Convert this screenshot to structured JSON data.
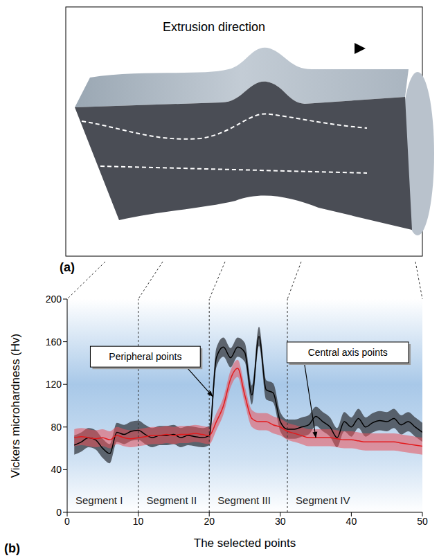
{
  "diagram": {
    "label": "(a)",
    "text": "Extrusion direction"
  },
  "chart_data": {
    "type": "line",
    "label": "(b)",
    "x_label": "The selected points",
    "y_label": "Vickers microhardness (Hv)",
    "x": [
      1,
      2,
      3,
      4,
      5,
      6,
      7,
      8,
      9,
      10,
      11,
      12,
      13,
      14,
      15,
      16,
      17,
      18,
      19,
      20,
      21,
      22,
      23,
      24,
      25,
      26,
      27,
      28,
      29,
      30,
      31,
      32,
      33,
      34,
      35,
      36,
      37,
      38,
      39,
      40,
      41,
      42,
      43,
      44,
      45,
      46,
      47,
      48,
      49,
      50
    ],
    "xlim": [
      0,
      50
    ],
    "xticks": [
      0,
      10,
      20,
      30,
      40,
      50
    ],
    "ylim": [
      0,
      200
    ],
    "yticks": [
      0,
      40,
      80,
      120,
      160,
      200
    ],
    "series": [
      {
        "name": "Peripheral points",
        "color": "#000000",
        "error": 9,
        "values": [
          63,
          66,
          70,
          68,
          60,
          55,
          75,
          73,
          76,
          77,
          73,
          70,
          72,
          72,
          73,
          70,
          72,
          71,
          70,
          72,
          145,
          155,
          145,
          155,
          150,
          110,
          165,
          115,
          112,
          85,
          78,
          78,
          80,
          82,
          90,
          85,
          80,
          70,
          85,
          80,
          88,
          80,
          84,
          86,
          85,
          88,
          82,
          85,
          80,
          75
        ]
      },
      {
        "name": "Central axis points",
        "color": "#e31a1c",
        "error": 8,
        "values": [
          70,
          71,
          70,
          69,
          70,
          68,
          72,
          70,
          69,
          70,
          71,
          72,
          72,
          73,
          72,
          73,
          73,
          74,
          73,
          72,
          85,
          100,
          125,
          135,
          110,
          88,
          85,
          85,
          82,
          80,
          76,
          74,
          72,
          70,
          70,
          70,
          70,
          69,
          68,
          68,
          67,
          66,
          66,
          66,
          66,
          66,
          65,
          64,
          63,
          62
        ]
      }
    ],
    "segments": [
      {
        "label": "Segment I",
        "start": 0,
        "end": 10
      },
      {
        "label": "Segment II",
        "start": 10,
        "end": 20
      },
      {
        "label": "Segment III",
        "start": 20,
        "end": 31
      },
      {
        "label": "Segment IV",
        "start": 31,
        "end": 50
      }
    ]
  }
}
